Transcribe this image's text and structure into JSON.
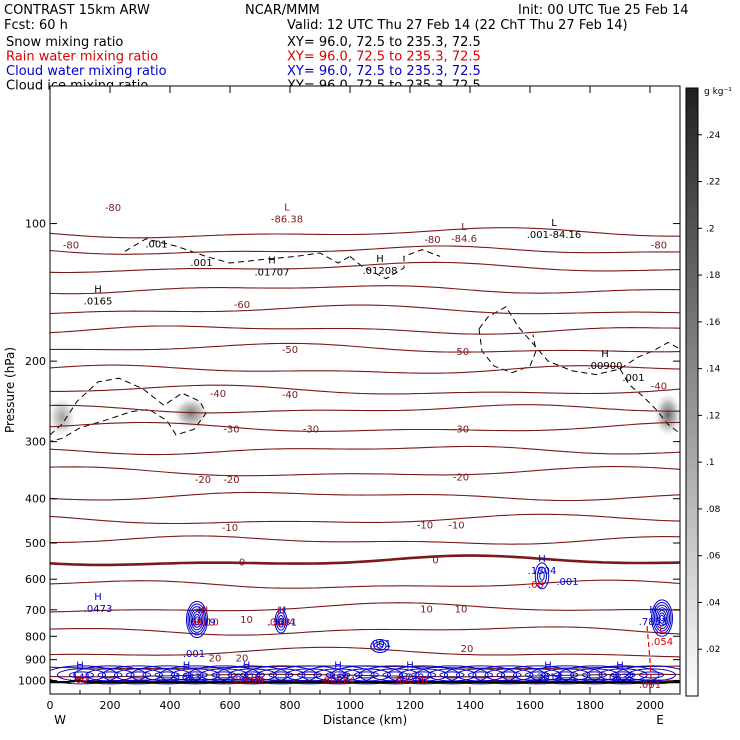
{
  "header": {
    "model": "CONTRAST 15km ARW",
    "org": "NCAR/MMM",
    "init": "Init: 00 UTC Tue 25 Feb 14",
    "fcst": "Fcst:   60 h",
    "valid": "Valid: 12 UTC Thu 27 Feb 14 (22 ChT Thu 27 Feb 14)",
    "fields": [
      {
        "name": "Snow mixing ratio",
        "xy": "XY=  96.0, 72.5 to 235.3, 72.5",
        "color": "#000000"
      },
      {
        "name": "Rain water mixing ratio",
        "xy": "XY=  96.0, 72.5 to 235.3, 72.5",
        "color": "#dd0000"
      },
      {
        "name": "Cloud water mixing ratio",
        "xy": "XY=  96.0, 72.5 to 235.3, 72.5",
        "color": "#0000cc"
      },
      {
        "name": "Cloud ice mixing ratio",
        "xy": "XY=  96.0, 72.5 to 235.3, 72.5",
        "color": "#000000"
      }
    ]
  },
  "colors": {
    "temperature": "#7a1a1a",
    "rain": "#dd0000",
    "cloud_water": "#0000cc",
    "cloud_ice": "#000000",
    "frame": "#000000"
  },
  "chart_data": {
    "type": "contour",
    "xlabel": "Distance (km)",
    "ylabel": "Pressure (hPa)",
    "xlim": [
      0,
      2100
    ],
    "ylim": [
      1070,
      50
    ],
    "y_scale": "log",
    "x_ticks": [
      0,
      200,
      400,
      600,
      800,
      1000,
      1200,
      1400,
      1600,
      1800,
      2000
    ],
    "y_ticks": [
      100,
      200,
      300,
      400,
      500,
      600,
      700,
      800,
      900,
      1000
    ],
    "x_end_labels": {
      "left": "W",
      "right": "E"
    },
    "colorbar": {
      "unit": "g kg⁻¹",
      "ticks": [
        ".02",
        ".04",
        ".06",
        ".08",
        ".1",
        ".12",
        ".14",
        ".16",
        ".18",
        ".2",
        ".22",
        ".24"
      ],
      "range": [
        0,
        0.26
      ],
      "cmap": "white-to-black"
    },
    "temperature_contours": [
      {
        "level": -80,
        "pressure": 105
      },
      {
        "level": -70,
        "pressure": 125
      },
      {
        "level": -60,
        "pressure": 155
      },
      {
        "level": -50,
        "pressure": 188
      },
      {
        "level": -40,
        "pressure": 232
      },
      {
        "level": -30,
        "pressure": 280
      },
      {
        "level": -20,
        "pressure": 350
      },
      {
        "level": -10,
        "pressure": 445
      },
      {
        "level": 0,
        "pressure": 548
      },
      {
        "level": 10,
        "pressure": 695
      },
      {
        "level": 20,
        "pressure": 870
      }
    ],
    "temperature_labels": [
      {
        "text": "-80",
        "x": 210,
        "p": 92
      },
      {
        "text": "-80",
        "x": 70,
        "p": 111
      },
      {
        "text": "-80",
        "x": 1275,
        "p": 108
      },
      {
        "text": "-80",
        "x": 2030,
        "p": 111
      },
      {
        "text": "-60",
        "x": 640,
        "p": 150
      },
      {
        "text": "-50",
        "x": 800,
        "p": 188
      },
      {
        "text": "-50",
        "x": 1370,
        "p": 190
      },
      {
        "text": "-40",
        "x": 560,
        "p": 235
      },
      {
        "text": "-40",
        "x": 800,
        "p": 236
      },
      {
        "text": "-40",
        "x": 2030,
        "p": 226
      },
      {
        "text": "-30",
        "x": 605,
        "p": 281
      },
      {
        "text": "-30",
        "x": 870,
        "p": 281
      },
      {
        "text": "-30",
        "x": 1370,
        "p": 281
      },
      {
        "text": "-20",
        "x": 510,
        "p": 362
      },
      {
        "text": "-20",
        "x": 605,
        "p": 362
      },
      {
        "text": "-20",
        "x": 1370,
        "p": 358
      },
      {
        "text": "-10",
        "x": 600,
        "p": 461
      },
      {
        "text": "-10",
        "x": 1250,
        "p": 455
      },
      {
        "text": "-10",
        "x": 1355,
        "p": 455
      },
      {
        "text": "0",
        "x": 640,
        "p": 549
      },
      {
        "text": "0",
        "x": 1285,
        "p": 544
      },
      {
        "text": "10",
        "x": 1255,
        "p": 695
      },
      {
        "text": "10",
        "x": 1370,
        "p": 695
      },
      {
        "text": "10",
        "x": 655,
        "p": 733
      },
      {
        "text": "20",
        "x": 1390,
        "p": 849
      },
      {
        "text": "20",
        "x": 550,
        "p": 890
      },
      {
        "text": "20",
        "x": 640,
        "p": 890
      }
    ],
    "extrema_labels": [
      {
        "symbol": "L",
        "value": "86.38",
        "x": 790,
        "p": 98,
        "color": "#7a1a1a",
        "prefix": "-"
      },
      {
        "symbol": "L",
        "value": "84.6",
        "x": 1380,
        "p": 108,
        "color": "#7a1a1a",
        "prefix": "-"
      },
      {
        "symbol": "L",
        "value": ".001-84.16",
        "x": 1680,
        "p": 106,
        "color": "#000000",
        "prefix": ""
      },
      {
        "symbol": "",
        "value": ".001",
        "x": 355,
        "p": 111,
        "color": "#000000",
        "prefix": ""
      },
      {
        "symbol": "",
        "value": ".001",
        "x": 505,
        "p": 122,
        "color": "#000000",
        "prefix": ""
      },
      {
        "symbol": "H",
        "value": ".01707",
        "x": 740,
        "p": 128,
        "color": "#000000",
        "prefix": ""
      },
      {
        "symbol": "H",
        "value": ".01208",
        "x": 1100,
        "p": 127,
        "color": "#000000",
        "prefix": ""
      },
      {
        "symbol": "H",
        "value": ".0165",
        "x": 160,
        "p": 148,
        "color": "#000000",
        "prefix": ""
      },
      {
        "symbol": "H",
        "value": ".00900",
        "x": 1850,
        "p": 205,
        "color": "#000000",
        "prefix": ""
      },
      {
        "symbol": "",
        "value": ".001",
        "x": 1945,
        "p": 218,
        "color": "#000000",
        "prefix": ""
      },
      {
        "symbol": "H",
        "value": ".1804",
        "x": 1640,
        "p": 576,
        "color": "#0000cc",
        "prefix": ""
      },
      {
        "symbol": "",
        "value": ".00",
        "x": 1620,
        "p": 618,
        "color": "#dd0000",
        "prefix": ""
      },
      {
        "symbol": "",
        "value": ".001",
        "x": 1725,
        "p": 608,
        "color": "#0000cc",
        "prefix": ""
      },
      {
        "symbol": "H",
        "value": ".0473",
        "x": 160,
        "p": 697,
        "color": "#0000cc",
        "prefix": ""
      },
      {
        "symbol": "H",
        "value": ".6019",
        "x": 505,
        "p": 746,
        "color": "#0000cc",
        "prefix": ""
      },
      {
        "symbol": "H",
        "value": ".0010",
        "x": 515,
        "p": 746,
        "color": "#dd0000",
        "prefix": ""
      },
      {
        "symbol": "H",
        "value": ".3631",
        "x": 775,
        "p": 746,
        "color": "#0000cc",
        "prefix": ""
      },
      {
        "symbol": "H",
        "value": ".0004",
        "x": 770,
        "p": 746,
        "color": "#dd0000",
        "prefix": ""
      },
      {
        "symbol": "H",
        "value": ".7853",
        "x": 2010,
        "p": 744,
        "color": "#0000cc",
        "prefix": ""
      },
      {
        "symbol": "L",
        "value": ".054",
        "x": 2040,
        "p": 823,
        "color": "#dd0000",
        "prefix": ""
      },
      {
        "symbol": "",
        "value": ".001",
        "x": 1100,
        "p": 832,
        "color": "#0000cc",
        "prefix": ""
      },
      {
        "symbol": "",
        "value": ".001",
        "x": 480,
        "p": 875,
        "color": "#0000cc",
        "prefix": ""
      },
      {
        "symbol": "H",
        "value": ".141",
        "x": 100,
        "p": 985,
        "color": "#0000cc",
        "prefix": ""
      },
      {
        "symbol": "",
        "value": ".00",
        "x": 100,
        "p": 997,
        "color": "#dd0000",
        "prefix": ""
      },
      {
        "symbol": "H",
        "value": ".1683",
        "x": 455,
        "p": 985,
        "color": "#0000cc",
        "prefix": ""
      },
      {
        "symbol": "H",
        "value": ".5476",
        "x": 655,
        "p": 985,
        "color": "#0000cc",
        "prefix": ""
      },
      {
        "symbol": "",
        "value": ".00008",
        "x": 655,
        "p": 1000,
        "color": "#dd0000",
        "prefix": ""
      },
      {
        "symbol": "H",
        "value": ".469",
        "x": 960,
        "p": 985,
        "color": "#0000cc",
        "prefix": ""
      },
      {
        "symbol": "",
        "value": ".00064",
        "x": 960,
        "p": 1000,
        "color": "#dd0000",
        "prefix": ""
      },
      {
        "symbol": "H",
        "value": ".1742",
        "x": 1200,
        "p": 985,
        "color": "#0000cc",
        "prefix": ""
      },
      {
        "symbol": "",
        "value": ".00016",
        "x": 1200,
        "p": 1000,
        "color": "#dd0000",
        "prefix": ""
      },
      {
        "symbol": "H",
        "value": ".2014",
        "x": 1660,
        "p": 985,
        "color": "#0000cc",
        "prefix": ""
      },
      {
        "symbol": "H",
        "value": ".0832",
        "x": 1900,
        "p": 985,
        "color": "#0000cc",
        "prefix": ""
      },
      {
        "symbol": "",
        "value": ".001",
        "x": 2000,
        "p": 1022,
        "color": "#dd0000",
        "prefix": ""
      }
    ],
    "shaded_snow": [
      {
        "x": 40,
        "p": 265,
        "rx": 45,
        "rp": 28,
        "peak": 0.1
      },
      {
        "x": 470,
        "p": 260,
        "rx": 60,
        "rp": 22,
        "peak": 0.14
      },
      {
        "x": 2060,
        "p": 262,
        "rx": 45,
        "rp": 30,
        "peak": 0.16
      }
    ],
    "cloud_water_cells": [
      {
        "x": 490,
        "p": 735,
        "rx": 70,
        "rp": 70,
        "rings": 7
      },
      {
        "x": 770,
        "p": 742,
        "rx": 40,
        "rp": 45,
        "rings": 4
      },
      {
        "x": 1640,
        "p": 590,
        "rx": 45,
        "rp": 40,
        "rings": 3
      },
      {
        "x": 1100,
        "p": 840,
        "rx": 60,
        "rp": 28,
        "rings": 3
      },
      {
        "x": 2040,
        "p": 730,
        "rx": 70,
        "rp": 70,
        "rings": 7
      }
    ],
    "low_cloud_band": {
      "x": [
        60,
        1990
      ],
      "p": 972,
      "dp": 22
    },
    "surface": {
      "pressure": 1008
    }
  }
}
